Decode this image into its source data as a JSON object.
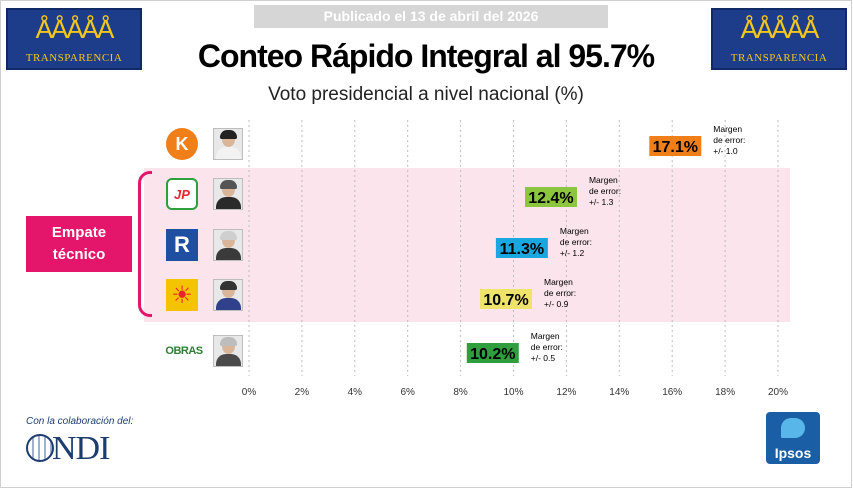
{
  "header": {
    "published": "Publicado el 13 de abril del 2026",
    "title": "Conteo Rápido Integral al 95.7%",
    "subtitle": "Voto presidencial a nivel nacional (%)",
    "logo_word": "TRANSPARENCIA",
    "logo_people": "ÅÅÅÅÅ"
  },
  "tie_label": {
    "line1": "Empate",
    "line2": "técnico"
  },
  "parties": {
    "fp": {
      "glyph": "K",
      "color": "#f07f1a"
    },
    "jp": {
      "glyph": "JP",
      "color": "#2e9e3e"
    },
    "rp": {
      "glyph": "R",
      "color": "#1f4fa0"
    },
    "pp": {
      "glyph": "☀",
      "color": "#e8242b"
    },
    "obras": {
      "glyph": "OBRAS",
      "color": "#2e7d32"
    }
  },
  "chart_data": {
    "type": "bar",
    "orientation": "horizontal",
    "title": "Conteo Rápido Integral al 95.7%",
    "subtitle": "Voto presidencial a nivel nacional (%)",
    "xlim": [
      0,
      20
    ],
    "ticks": [
      "0%",
      "2%",
      "4%",
      "6%",
      "8%",
      "10%",
      "12%",
      "14%",
      "16%",
      "18%",
      "20%"
    ],
    "grid": "vertical dotted",
    "bars": [
      {
        "value": 17.1,
        "label": "17.1%",
        "color": "#f07f1a",
        "margin_lines": [
          "Margen",
          "de error:",
          "+/- 1.0"
        ]
      },
      {
        "value": 12.4,
        "label": "12.4%",
        "color": "#8cc63f",
        "margin_lines": [
          "Margen",
          "de error:",
          "+/- 1.3"
        ]
      },
      {
        "value": 11.3,
        "label": "11.3%",
        "color": "#1aa7e0",
        "margin_lines": [
          "Margen",
          "de error:",
          "+/- 1.2"
        ]
      },
      {
        "value": 10.7,
        "label": "10.7%",
        "color": "#efe36b",
        "margin_lines": [
          "Margen",
          "de error:",
          "+/- 0.9"
        ]
      },
      {
        "value": 10.2,
        "label": "10.2%",
        "color": "#2e9e3e",
        "margin_lines": [
          "Margen",
          "de error:",
          "+/- 0.5"
        ]
      }
    ]
  },
  "footer": {
    "colab": "Con la colaboración del:",
    "ndi": "NDI",
    "ipsos": "Ipsos"
  }
}
